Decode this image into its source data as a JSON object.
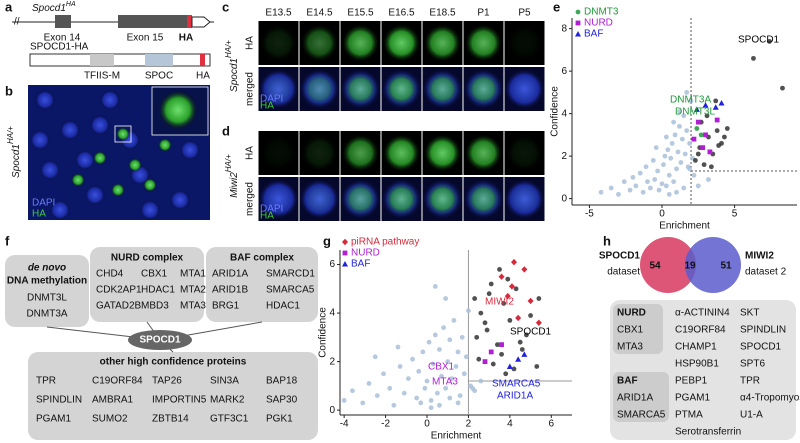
{
  "panel_labels": [
    "a",
    "b",
    "c",
    "d",
    "e",
    "f",
    "g",
    "h"
  ],
  "panel_a": {
    "gene": {
      "name": "Spocd1",
      "sup": "HA"
    },
    "exon14": "Exon 14",
    "exon15": "Exon 15",
    "tag": "HA",
    "protein": "SPOCD1-HA",
    "domains": [
      "TFIIS-M",
      "SPOC"
    ],
    "protein_tag": "HA"
  },
  "panel_b": {
    "genotype": {
      "name": "Spocd1",
      "sup": "HA/+"
    },
    "stains": [
      "DAPI",
      "HA"
    ]
  },
  "panel_c": {
    "stages": [
      "E13.5",
      "E14.5",
      "E15.5",
      "E16.5",
      "E18.5",
      "P1",
      "P5"
    ],
    "rows": [
      "HA",
      "merged"
    ],
    "genotype": {
      "name": "Spocd1",
      "sup": "HA/+"
    },
    "stains": [
      "DAPI",
      "HA"
    ]
  },
  "panel_d": {
    "rows": [
      "HA",
      "merged"
    ],
    "genotype": {
      "name": "Miwi2",
      "sup": "HA/+"
    },
    "stains": [
      "DAPI",
      "HA"
    ]
  },
  "chart_data": [
    {
      "type": "scatter",
      "xlabel": "Enrichment",
      "ylabel": "Confidence",
      "xlim": [
        -6.2,
        9.3
      ],
      "ylim": [
        -0.3,
        8.5
      ],
      "xticks": [
        -5,
        0,
        5
      ],
      "yticks": [
        0,
        2,
        4,
        6,
        8
      ],
      "thresholds": {
        "x": 2,
        "y": 1.3
      },
      "series": [
        {
          "color": "#a9c0d8",
          "marker": "circle",
          "x": [
            -4.2,
            -3.5,
            -3,
            -2.6,
            -2.2,
            -2,
            -1.8,
            -1.5,
            -1.3,
            -1.1,
            -1,
            -0.8,
            -0.6,
            -0.5,
            -0.3,
            -0.2,
            0,
            0.1,
            0.2,
            0.3,
            0.4,
            0.5,
            0.6,
            0.7,
            0.8,
            0.9,
            1,
            1.1,
            1.2,
            1.3,
            1.4,
            1.5,
            1.6,
            1.7,
            1.8,
            1.9,
            2,
            2.1,
            0.5,
            1,
            1.5,
            0.8,
            1.2,
            0.3,
            -0.4,
            1.7,
            2.2,
            2.5,
            3.2,
            1.9
          ],
          "y": [
            0.3,
            0.5,
            0.2,
            0.8,
            0.4,
            1,
            0.6,
            1.2,
            0.3,
            1.5,
            0.8,
            0.5,
            1.8,
            0.9,
            1.3,
            0.4,
            0.7,
            1.6,
            2,
            0.6,
            2.3,
            1.1,
            1.9,
            2.6,
            0.8,
            3,
            1.4,
            2.2,
            3.4,
            1.7,
            2.8,
            3.9,
            2.1,
            3.2,
            1.5,
            2.6,
            4.6,
            1.9,
            0.2,
            0.3,
            0.5,
            3.6,
            4.1,
            2.9,
            2.4,
            5,
            1.1,
            0.6,
            0.9,
            1.4
          ]
        },
        {
          "color": "#333333",
          "marker": "circle",
          "x": [
            2.3,
            2.6,
            2.9,
            3.2,
            3.5,
            3.8,
            4.1,
            4.5,
            2.7,
            3.1,
            3.4,
            3.9,
            4.3,
            6.3,
            7.4,
            8.3,
            2.5,
            3.7
          ],
          "y": [
            1.8,
            2.4,
            1.6,
            2.9,
            2.1,
            3.2,
            2.6,
            3.3,
            3.6,
            3.9,
            1.5,
            2.5,
            2.9,
            6.6,
            7.4,
            5.2,
            2.1,
            4.6
          ]
        },
        {
          "name": "DNMT3",
          "color": "#1f9a3a",
          "marker": "circle",
          "x": [
            2.4,
            2.7
          ],
          "y": [
            3.3,
            3.0
          ]
        },
        {
          "name": "NURD",
          "color": "#b01fd6",
          "marker": "square",
          "x": [
            2.5,
            3,
            2.8,
            3.8,
            3.3,
            2.2
          ],
          "y": [
            3.6,
            3,
            2.4,
            3.7,
            2.2,
            2.8
          ]
        },
        {
          "name": "BAF",
          "color": "#2222dd",
          "marker": "triangle",
          "x": [
            2.4,
            3,
            3.7,
            4.1
          ],
          "y": [
            4.2,
            4.4,
            4.3,
            4.5
          ]
        }
      ],
      "annotations": [
        {
          "text": "SPOCD1",
          "color": "#000000"
        },
        {
          "text": "DNMT3A",
          "color": "#1f9a3a"
        },
        {
          "text": "DNMT3L",
          "color": "#1f9a3a"
        }
      ]
    },
    {
      "type": "scatter",
      "xlabel": "Enrichment",
      "ylabel": "Confidence",
      "xlim": [
        -4.2,
        7
      ],
      "ylim": [
        -0.2,
        6.6
      ],
      "xticks": [
        -4,
        -2,
        0,
        2,
        4,
        6
      ],
      "yticks": [
        0,
        2,
        4,
        6
      ],
      "thresholds": {
        "x": 2,
        "y": 1.2
      },
      "series": [
        {
          "color": "#a9c0d8",
          "marker": "circle",
          "x": [
            -4,
            -3.6,
            -3.1,
            -2.8,
            -2.4,
            -2.1,
            -1.8,
            -1.6,
            -1.3,
            -1.1,
            -0.9,
            -0.7,
            -0.5,
            -0.4,
            -0.2,
            -0.1,
            0,
            0.1,
            0.2,
            0.3,
            0.4,
            0.5,
            0.6,
            0.7,
            0.8,
            0.9,
            1,
            1.1,
            1.2,
            1.3,
            1.4,
            1.5,
            1.6,
            1.7,
            1.8,
            1.9,
            2,
            2.1,
            2.3,
            2.6,
            0.2,
            0.6,
            -0.3,
            1.1,
            0.9,
            -1.4,
            -2.5,
            0.4,
            1.5,
            2.2
          ],
          "y": [
            0.4,
            0.8,
            0.3,
            1.1,
            0.6,
            1.5,
            0.9,
            0.2,
            1.8,
            0.7,
            1.3,
            2.1,
            0.5,
            1.6,
            2.4,
            0.9,
            1.2,
            2.8,
            0.4,
            1.9,
            3.1,
            0.7,
            2.5,
            1.4,
            3.4,
            0.9,
            2,
            2.9,
            1.3,
            3.7,
            1.8,
            2.4,
            0.6,
            3,
            1.5,
            2.2,
            4.1,
            1,
            0.8,
            1.2,
            0.1,
            0.2,
            0.3,
            0.5,
            4.6,
            2.6,
            2.2,
            5.1,
            0.3,
            0.9
          ]
        },
        {
          "color": "#333333",
          "marker": "circle",
          "x": [
            2.3,
            2.6,
            2.9,
            3.1,
            3.4,
            3.7,
            4,
            4.3,
            4.6,
            5,
            5.4,
            2.5,
            2.8,
            3.2,
            3.6,
            3.9,
            4.2,
            4.8,
            5.3,
            3,
            3.5,
            4.5,
            2.4,
            3.8
          ],
          "y": [
            4.6,
            4,
            3.3,
            5.2,
            2.7,
            4.4,
            3.7,
            5,
            2.5,
            3.9,
            4.6,
            2.1,
            3.6,
            1.9,
            2.3,
            5.4,
            1.7,
            3.1,
            1.8,
            4.8,
            5.8,
            2.8,
            3,
            1.5
          ]
        },
        {
          "name": "piRNA pathway",
          "color": "#d62a3a",
          "marker": "diamond",
          "x": [
            3.6,
            4.1,
            4.7,
            3.9,
            5,
            4.4,
            5.4,
            4.2
          ],
          "y": [
            5.5,
            5.1,
            5.8,
            4.7,
            4.5,
            3.8,
            3.6,
            6.1
          ]
        },
        {
          "name": "NURD",
          "color": "#b01fd6",
          "marker": "square",
          "x": [
            2.8,
            3.1,
            3.6
          ],
          "y": [
            2,
            2.4,
            2.7
          ]
        },
        {
          "name": "BAF",
          "color": "#2222dd",
          "marker": "triangle",
          "x": [
            4,
            4.4,
            4.7
          ],
          "y": [
            1.8,
            2.1,
            2.3
          ]
        }
      ],
      "annotations": [
        {
          "text": "MIWI2",
          "color": "#d62a3a"
        },
        {
          "text": "SPOCD1",
          "color": "#000000"
        },
        {
          "text": "CBX1",
          "color": "#b01fd6"
        },
        {
          "text": "MTA3",
          "color": "#b01fd6"
        },
        {
          "text": "SMARCA5",
          "color": "#2222dd"
        },
        {
          "text": "ARID1A",
          "color": "#2222dd"
        }
      ]
    }
  ],
  "panel_f": {
    "center": "SPOCD1",
    "groups": [
      {
        "title_prefix": "de novo",
        "title": "DNA methylation",
        "items": [
          "DNMT3L",
          "DNMT3A"
        ]
      },
      {
        "title": "NURD complex",
        "items": [
          "CHD4",
          "CBX1",
          "MTA1",
          "CDK2AP1",
          "HDAC1",
          "MTA2",
          "GATAD2B",
          "MBD3",
          "MTA3"
        ]
      },
      {
        "title": "BAF complex",
        "items": [
          "ARID1A",
          "SMARCD1",
          "ARID1B",
          "SMARCA5",
          "BRG1",
          "HDAC1"
        ]
      },
      {
        "title": "other high confidence proteins",
        "items": [
          "TPR",
          "C19ORF84",
          "TAP26",
          "SIN3A",
          "BAP18",
          "SPINDLIN",
          "AMBRA1",
          "IMPORTIN5",
          "MARK2",
          "SAP30",
          "PGAM1",
          "SUMO2",
          "ZBTB14",
          "GTF3C1",
          "PGK1"
        ]
      }
    ]
  },
  "panel_h": {
    "venn": {
      "left": {
        "name": "SPOCD1",
        "sub": "dataset"
      },
      "right": {
        "name": "MIWI2",
        "sub": "dataset 2"
      },
      "values": [
        54,
        19,
        51
      ]
    },
    "groups": [
      {
        "title": "NURD",
        "items": [
          "CBX1",
          "MTA3"
        ]
      },
      {
        "title": "BAF",
        "items": [
          "ARID1A",
          "SMARCA5"
        ]
      }
    ],
    "columns": [
      [
        "α-ACTININ4",
        "C19ORF84",
        "CHAMP1",
        "HSP90B1",
        "PEBP1",
        "PGAM1",
        "PTMA",
        "Serotransferrin"
      ],
      [
        "SKT",
        "SPINDLIN",
        "SPOCD1",
        "SPT6",
        "TPR",
        "α4-Tropomyosin",
        "U1-A"
      ]
    ]
  }
}
